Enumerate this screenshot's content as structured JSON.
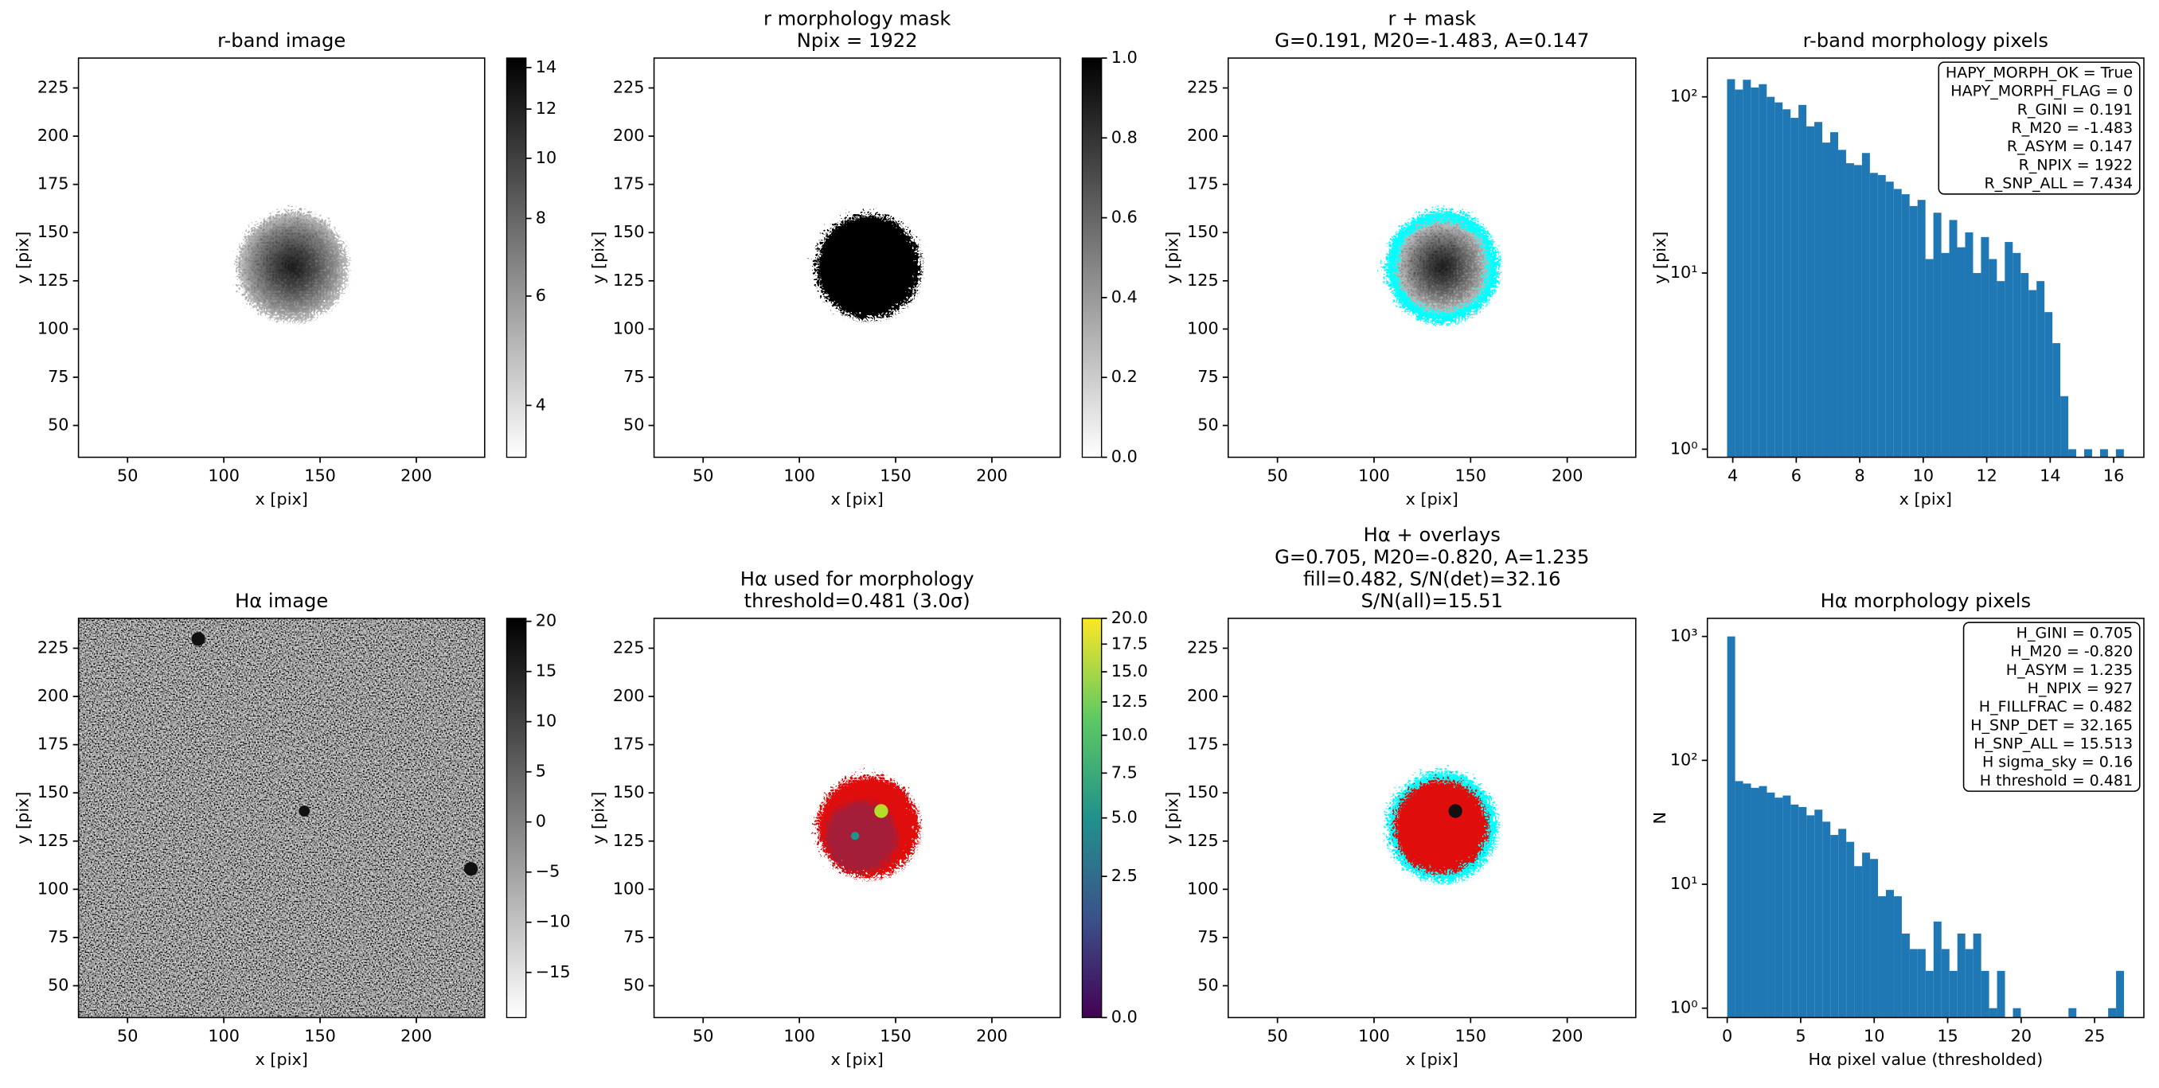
{
  "chart_data": [
    {
      "type": "image",
      "title": [
        "r-band image"
      ],
      "xlabel": "x [pix]",
      "ylabel": "y [pix]",
      "xlim": [
        24.5,
        235.5
      ],
      "ylim": [
        33.5,
        240.5
      ],
      "xticks": [
        50,
        100,
        150,
        200
      ],
      "yticks": [
        50,
        75,
        100,
        125,
        150,
        175,
        200,
        225
      ],
      "colorbar": {
        "cmap": "gray_r",
        "scale": "log",
        "clim": [
          3.3,
          14.5
        ],
        "ticks": [
          4,
          6,
          8,
          10,
          12,
          14
        ]
      }
    },
    {
      "type": "image",
      "title": [
        "r morphology mask",
        "Npix = 1922"
      ],
      "xlabel": "x [pix]",
      "ylabel": "y [pix]",
      "xlim": [
        24.5,
        235.5
      ],
      "ylim": [
        33.5,
        240.5
      ],
      "xticks": [
        50,
        100,
        150,
        200
      ],
      "yticks": [
        50,
        75,
        100,
        125,
        150,
        175,
        200,
        225
      ],
      "colorbar": {
        "cmap": "gray_r",
        "scale": "linear",
        "clim": [
          0,
          1
        ],
        "ticks": [
          {
            "value": 0,
            "label": "0.0"
          },
          {
            "value": 0.2,
            "label": "0.2"
          },
          {
            "value": 0.4,
            "label": "0.4"
          },
          {
            "value": 0.6,
            "label": "0.6"
          },
          {
            "value": 0.8,
            "label": "0.8"
          },
          {
            "value": 1,
            "label": "1.0"
          }
        ]
      }
    },
    {
      "type": "image",
      "title": [
        "r + mask",
        "G=0.191, M20=-1.483, A=0.147"
      ],
      "xlabel": "x [pix]",
      "ylabel": "y [pix]",
      "xlim": [
        24.5,
        235.5
      ],
      "ylim": [
        33.5,
        240.5
      ],
      "xticks": [
        50,
        100,
        150,
        200
      ],
      "yticks": [
        50,
        75,
        100,
        125,
        150,
        175,
        200,
        225
      ]
    },
    {
      "type": "histogram",
      "title": [
        "r-band morphology pixels"
      ],
      "xlabel": "x [pix]",
      "ylabel": "y [pix]",
      "color": "#1f77b4",
      "yscale": "log",
      "xlim": [
        3.2,
        16.95
      ],
      "ylim": [
        0.9,
        166
      ],
      "xticks": [
        4,
        6,
        8,
        10,
        12,
        14,
        16
      ],
      "yticks": [
        {
          "value": 1,
          "label": "10⁰"
        },
        {
          "value": 10,
          "label": "10¹"
        },
        {
          "value": 100,
          "label": "10²"
        }
      ],
      "bins": [
        3.82,
        4.07,
        4.32,
        4.57,
        4.82,
        5.07,
        5.32,
        5.57,
        5.82,
        6.07,
        6.32,
        6.57,
        6.82,
        7.07,
        7.32,
        7.57,
        7.82,
        8.07,
        8.32,
        8.57,
        8.82,
        9.07,
        9.32,
        9.57,
        9.82,
        10.07,
        10.32,
        10.57,
        10.82,
        11.07,
        11.32,
        11.57,
        11.82,
        12.07,
        12.32,
        12.57,
        12.82,
        13.07,
        13.32,
        13.57,
        13.82,
        14.07,
        14.32,
        14.57,
        14.82,
        15.07,
        15.32,
        15.57,
        15.82,
        16.07,
        16.32
      ],
      "values": [
        126,
        110,
        125,
        113,
        118,
        100,
        93,
        85,
        76,
        90,
        68,
        72,
        55,
        63,
        50,
        42,
        41,
        48,
        37,
        36,
        33,
        30,
        28,
        24,
        26,
        12,
        22,
        13,
        20,
        14,
        17,
        10,
        16,
        12,
        9,
        15,
        13,
        10,
        8,
        9,
        6,
        4,
        2,
        1,
        0,
        1,
        0,
        1,
        0,
        1
      ],
      "annotation": [
        "HAPY_MORPH_OK = True",
        "HAPY_MORPH_FLAG = 0",
        "R_GINI = 0.191",
        "R_M20 = -1.483",
        "R_ASYM = 0.147",
        "R_NPIX = 1922",
        "R_SNP_ALL = 7.434"
      ]
    },
    {
      "type": "image",
      "title": [
        "Hα image"
      ],
      "xlabel": "x [pix]",
      "ylabel": "y [pix]",
      "xlim": [
        24.5,
        235.5
      ],
      "ylim": [
        33.5,
        240.5
      ],
      "xticks": [
        50,
        100,
        150,
        200
      ],
      "yticks": [
        50,
        75,
        100,
        125,
        150,
        175,
        200,
        225
      ],
      "colorbar": {
        "cmap": "gray_r",
        "scale": "linear",
        "clim": [
          -19.5,
          20.3
        ],
        "ticks": [
          {
            "value": -15,
            "label": "−15"
          },
          {
            "value": -10,
            "label": "−10"
          },
          {
            "value": -5,
            "label": "−5"
          },
          0,
          5,
          10,
          15,
          20
        ]
      }
    },
    {
      "type": "image",
      "title": [
        "Hα used for morphology",
        "threshold=0.481 (3.0σ)"
      ],
      "xlabel": "x [pix]",
      "ylabel": "y [pix]",
      "xlim": [
        24.5,
        235.5
      ],
      "ylim": [
        33.5,
        240.5
      ],
      "xticks": [
        50,
        100,
        150,
        200
      ],
      "yticks": [
        50,
        75,
        100,
        125,
        150,
        175,
        200,
        225
      ],
      "colorbar": {
        "cmap": "viridis",
        "scale": "sqrt",
        "clim": [
          0,
          20
        ],
        "ticks": [
          {
            "value": 0,
            "label": "0.0"
          },
          {
            "value": 2.5,
            "label": "2.5"
          },
          {
            "value": 5,
            "label": "5.0"
          },
          {
            "value": 7.5,
            "label": "7.5"
          },
          {
            "value": 10,
            "label": "10.0"
          },
          {
            "value": 12.5,
            "label": "12.5"
          },
          {
            "value": 15,
            "label": "15.0"
          },
          {
            "value": 17.5,
            "label": "17.5"
          },
          {
            "value": 20,
            "label": "20.0"
          }
        ]
      }
    },
    {
      "type": "image",
      "title": [
        "Hα + overlays",
        "G=0.705, M20=-0.820, A=1.235",
        "fill=0.482, S/N(det)=32.16",
        "S/N(all)=15.51"
      ],
      "xlabel": "x [pix]",
      "ylabel": "y [pix]",
      "xlim": [
        24.5,
        235.5
      ],
      "ylim": [
        33.5,
        240.5
      ],
      "xticks": [
        50,
        100,
        150,
        200
      ],
      "yticks": [
        50,
        75,
        100,
        125,
        150,
        175,
        200,
        225
      ]
    },
    {
      "type": "histogram",
      "title": [
        "Hα morphology pixels"
      ],
      "xlabel": "Hα pixel value (thresholded)",
      "ylabel": "N",
      "color": "#1f77b4",
      "yscale": "log",
      "xlim": [
        -1.35,
        28.35
      ],
      "ylim": [
        0.84,
        1400
      ],
      "xticks": [
        0,
        5,
        10,
        15,
        20,
        25
      ],
      "yticks": [
        {
          "value": 1,
          "label": "10⁰"
        },
        {
          "value": 10,
          "label": "10¹"
        },
        {
          "value": 100,
          "label": "10²"
        },
        {
          "value": 1000,
          "label": "10³"
        }
      ],
      "bins": [
        0,
        0.54,
        1.08,
        1.62,
        2.16,
        2.7,
        3.24,
        3.78,
        4.32,
        4.86,
        5.4,
        5.94,
        6.48,
        7.02,
        7.56,
        8.1,
        8.64,
        9.18,
        9.72,
        10.26,
        10.8,
        11.34,
        11.88,
        12.42,
        12.96,
        13.5,
        14.04,
        14.58,
        15.12,
        15.66,
        16.2,
        16.74,
        17.28,
        17.82,
        18.36,
        18.9,
        19.44,
        19.98,
        20.52,
        21.06,
        21.6,
        22.14,
        22.68,
        23.22,
        23.76,
        24.3,
        24.84,
        25.38,
        25.92,
        26.46,
        27.0
      ],
      "values": [
        1000,
        68,
        65,
        60,
        62,
        55,
        50,
        52,
        44,
        42,
        36,
        40,
        32,
        25,
        28,
        22,
        14,
        18,
        16,
        8,
        9,
        8,
        4,
        3,
        3,
        2,
        5,
        3,
        2,
        4,
        3,
        4,
        2,
        1,
        2,
        0,
        1,
        0,
        0,
        0,
        0,
        0,
        0,
        1,
        0,
        0,
        0,
        0,
        1,
        2
      ],
      "annotation": [
        "H_GINI = 0.705",
        "H_M20 = -0.820",
        "H_ASYM = 1.235",
        "H_NPIX = 927",
        "H_FILLFRAC = 0.482",
        "H_SNP_DET = 32.165",
        "H_SNP_ALL = 15.513",
        "H sigma_sky = 0.16",
        "H threshold = 0.481"
      ]
    }
  ]
}
